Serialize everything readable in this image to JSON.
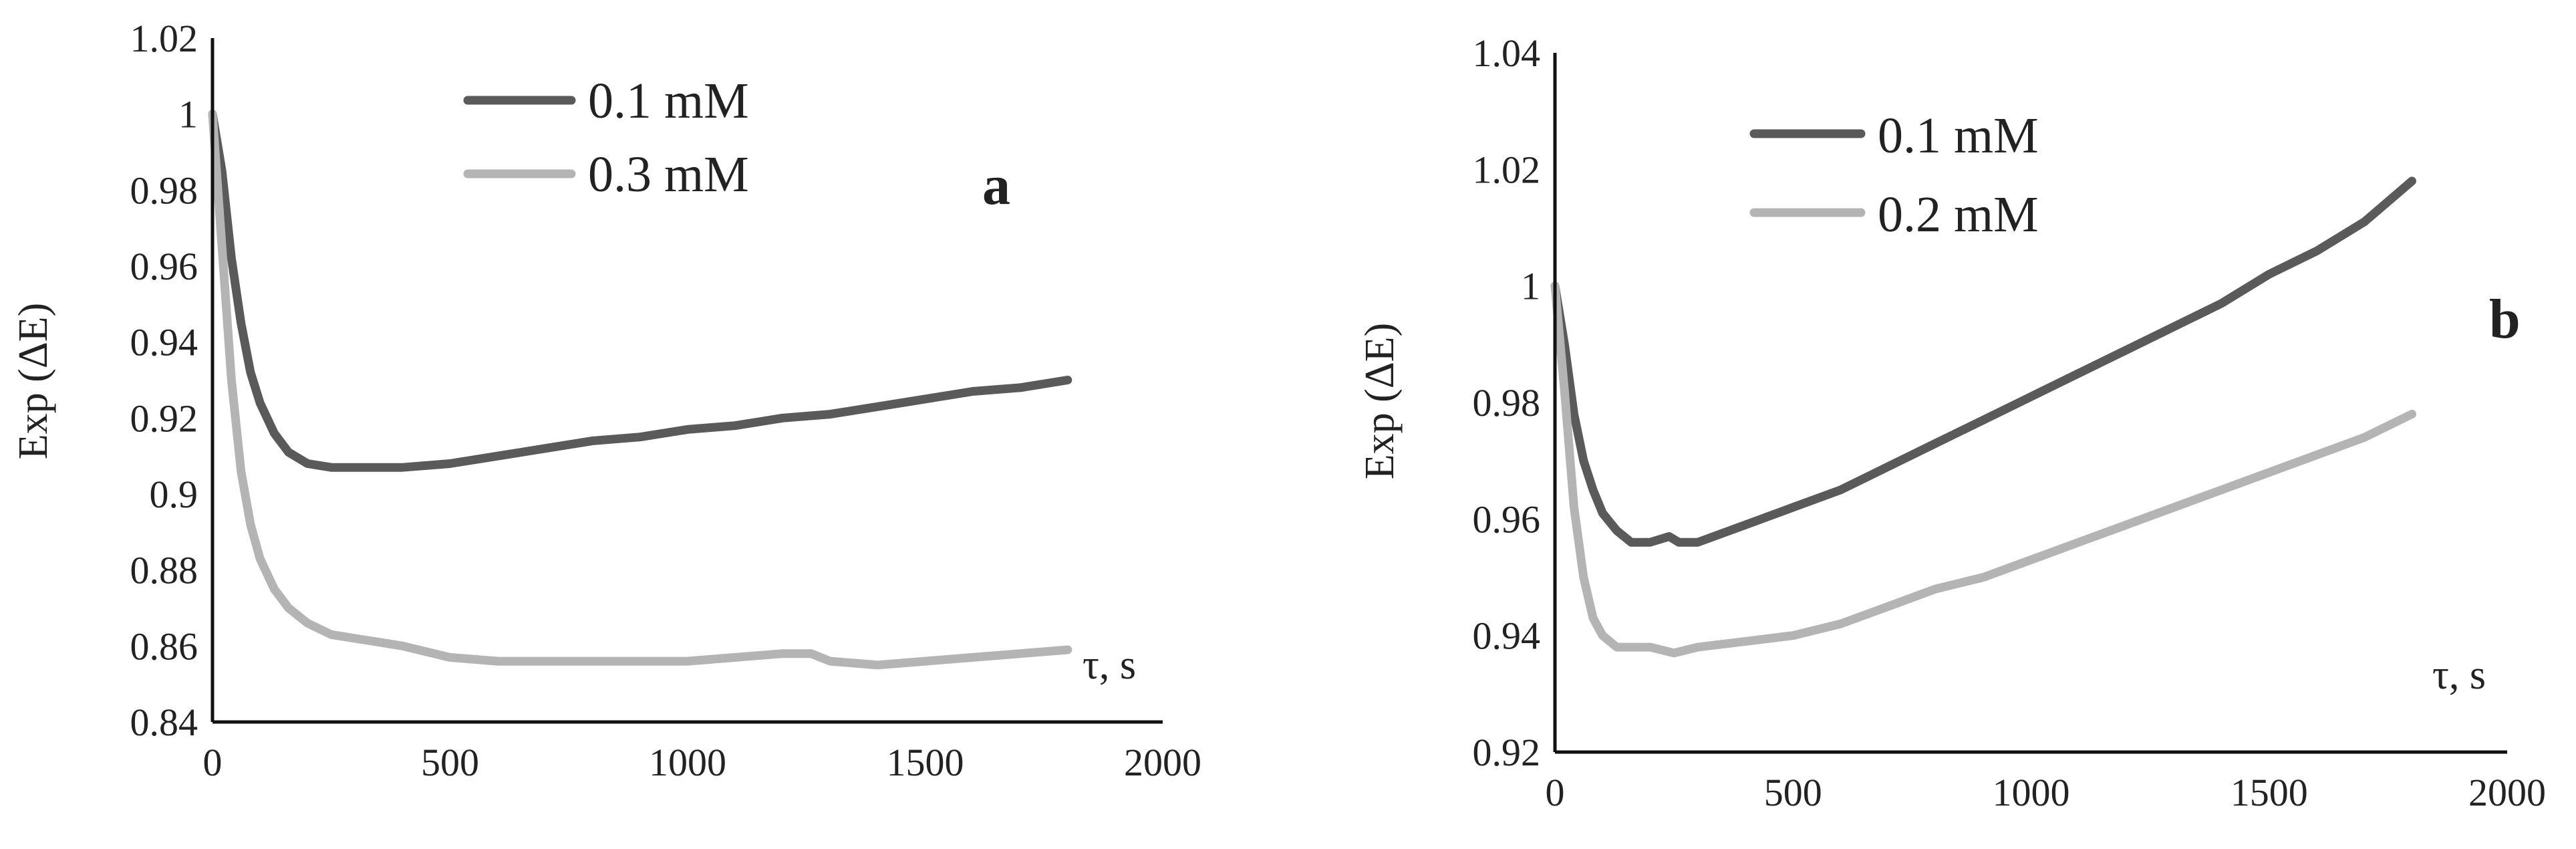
{
  "chart_data": [
    {
      "type": "line",
      "panel": "a",
      "xlabel": "τ, s",
      "ylabel": "Exp (ΔE)",
      "xlim": [
        0,
        2000
      ],
      "ylim": [
        0.84,
        1.02
      ],
      "xticks": [
        "0",
        "500",
        "1000",
        "1500",
        "2000"
      ],
      "yticks": [
        "0.84",
        "0.86",
        "0.88",
        "0.9",
        "0.92",
        "0.94",
        "0.96",
        "0.98",
        "1",
        "1.02"
      ],
      "grid": false,
      "legend_position": "top-center",
      "series": [
        {
          "name": "0.1 mM",
          "color": "#5a5a5a",
          "x": [
            0,
            20,
            40,
            60,
            80,
            100,
            130,
            160,
            200,
            250,
            300,
            350,
            400,
            500,
            600,
            700,
            800,
            900,
            1000,
            1100,
            1200,
            1300,
            1400,
            1500,
            1600,
            1700,
            1800
          ],
          "y": [
            1.0,
            0.985,
            0.962,
            0.945,
            0.932,
            0.924,
            0.916,
            0.911,
            0.908,
            0.907,
            0.907,
            0.907,
            0.907,
            0.908,
            0.91,
            0.912,
            0.914,
            0.915,
            0.917,
            0.918,
            0.92,
            0.921,
            0.923,
            0.925,
            0.927,
            0.928,
            0.93
          ]
        },
        {
          "name": "0.3 mM",
          "color": "#b4b4b4",
          "x": [
            0,
            20,
            40,
            60,
            80,
            100,
            130,
            160,
            200,
            250,
            300,
            350,
            400,
            500,
            600,
            700,
            800,
            900,
            1000,
            1100,
            1200,
            1260,
            1300,
            1400,
            1500,
            1600,
            1700,
            1800
          ],
          "y": [
            1.0,
            0.965,
            0.93,
            0.906,
            0.892,
            0.883,
            0.875,
            0.87,
            0.866,
            0.863,
            0.862,
            0.861,
            0.86,
            0.857,
            0.856,
            0.856,
            0.856,
            0.856,
            0.856,
            0.857,
            0.858,
            0.858,
            0.856,
            0.855,
            0.856,
            0.857,
            0.858,
            0.859
          ]
        }
      ]
    },
    {
      "type": "line",
      "panel": "b",
      "xlabel": "τ, s",
      "ylabel": "Exp (ΔE)",
      "xlim": [
        0,
        2000
      ],
      "ylim": [
        0.92,
        1.04
      ],
      "xticks": [
        "0",
        "500",
        "1000",
        "1500",
        "2000"
      ],
      "yticks": [
        "0.92",
        "0.94",
        "0.96",
        "0.98",
        "1",
        "1.02",
        "1.04"
      ],
      "grid": false,
      "legend_position": "top-center",
      "series": [
        {
          "name": "0.1 mM",
          "color": "#5a5a5a",
          "x": [
            0,
            20,
            40,
            60,
            80,
            100,
            130,
            160,
            200,
            240,
            260,
            300,
            400,
            500,
            600,
            700,
            800,
            900,
            1000,
            1100,
            1200,
            1300,
            1400,
            1500,
            1600,
            1700,
            1800
          ],
          "y": [
            1.0,
            0.99,
            0.978,
            0.97,
            0.965,
            0.961,
            0.958,
            0.956,
            0.956,
            0.957,
            0.956,
            0.956,
            0.959,
            0.962,
            0.965,
            0.969,
            0.973,
            0.977,
            0.981,
            0.985,
            0.989,
            0.993,
            0.997,
            1.002,
            1.006,
            1.011,
            1.018
          ]
        },
        {
          "name": "0.2 mM",
          "color": "#b4b4b4",
          "x": [
            0,
            20,
            40,
            60,
            80,
            100,
            130,
            160,
            200,
            250,
            300,
            400,
            500,
            600,
            700,
            800,
            900,
            1000,
            1100,
            1200,
            1300,
            1400,
            1500,
            1600,
            1700,
            1800
          ],
          "y": [
            1.0,
            0.982,
            0.962,
            0.95,
            0.943,
            0.94,
            0.938,
            0.938,
            0.938,
            0.937,
            0.938,
            0.939,
            0.94,
            0.942,
            0.945,
            0.948,
            0.95,
            0.953,
            0.956,
            0.959,
            0.962,
            0.965,
            0.968,
            0.971,
            0.974,
            0.978
          ]
        }
      ]
    }
  ]
}
